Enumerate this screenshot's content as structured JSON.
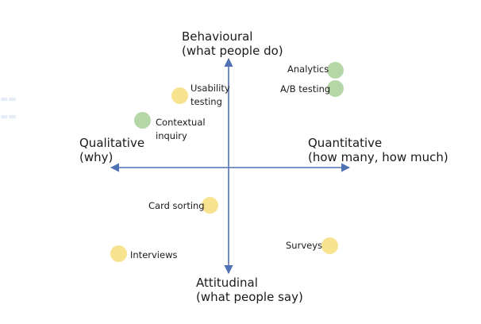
{
  "colors": {
    "axis": "#4f72b5",
    "yellow_dot": "#f7e38f",
    "green_dot": "#b5d7a8",
    "text": "#1a1a1a"
  },
  "axes": {
    "top": {
      "line1": "Behavioural",
      "line2": "(what people do)"
    },
    "bottom": {
      "line1": "Attitudinal",
      "line2": "(what people say)"
    },
    "left": {
      "line1": "Qualitative",
      "line2": "(why)"
    },
    "right": {
      "line1": "Quantitative",
      "line2": "(how many, how much)"
    }
  },
  "methods": [
    {
      "id": "analytics",
      "label": "Analytics",
      "color": "green"
    },
    {
      "id": "ab-testing",
      "label": "A/B testing",
      "color": "green"
    },
    {
      "id": "usability-testing",
      "label_line1": "Usability",
      "label_line2": "testing",
      "color": "yellow"
    },
    {
      "id": "contextual-inquiry",
      "label_line1": "Contextual",
      "label_line2": "inquiry",
      "color": "green"
    },
    {
      "id": "card-sorting",
      "label": "Card sorting",
      "color": "yellow"
    },
    {
      "id": "interviews",
      "label": "Interviews",
      "color": "yellow"
    },
    {
      "id": "surveys",
      "label": "Surveys",
      "color": "yellow"
    }
  ]
}
